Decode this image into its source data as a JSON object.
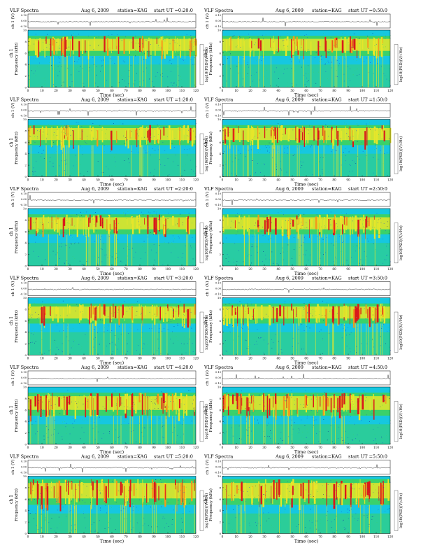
{
  "page": {
    "background": "#ffffff"
  },
  "common": {
    "title_left": "VLF Spectra",
    "date": "Aug 6, 2009",
    "station": "station=KAG",
    "start_prefix": "start  UT =",
    "amp_label": "ch 1 (V)",
    "amp_ticks": [
      "0.10",
      "0.00",
      "-0.10"
    ],
    "ylabel_line1": "ch 1",
    "ylabel_line2": "Frequency (kHz)",
    "xlabel": "Time (sec)",
    "x_ticks": [
      0,
      10,
      20,
      30,
      40,
      50,
      60,
      70,
      80,
      90,
      100,
      110,
      120
    ],
    "y_ticks": [
      0,
      2,
      4,
      6,
      8,
      10
    ],
    "colorbar_label": "log10(PSD)(V/√Hz)",
    "colormap": [
      "#0a1a8f",
      "#1e4fd8",
      "#16c7e0",
      "#3ad16a",
      "#e6e62a",
      "#f39a1c",
      "#d91a1a"
    ],
    "background_color": "#16c7e0"
  },
  "chart_data": [
    {
      "type": "heatmap",
      "start": "0:20:0",
      "xlabel": "Time (sec)",
      "ylabel": "Frequency (kHz)",
      "xlim": [
        0,
        120
      ],
      "ylim": [
        0,
        10
      ],
      "band_kHz": [
        5.5,
        9
      ],
      "cutoff_kHz": 10,
      "intensity": 0.5,
      "seed": 11
    },
    {
      "type": "heatmap",
      "start": "0:50:0",
      "xlabel": "Time (sec)",
      "ylabel": "Frequency (kHz)",
      "xlim": [
        0,
        120
      ],
      "ylim": [
        0,
        10
      ],
      "band_kHz": [
        5.5,
        9
      ],
      "cutoff_kHz": 10,
      "intensity": 0.5,
      "seed": 23
    },
    {
      "type": "heatmap",
      "start": "1:20:0",
      "xlabel": "Time (sec)",
      "ylabel": "Frequency (kHz)",
      "xlim": [
        0,
        120
      ],
      "ylim": [
        0,
        10
      ],
      "band_kHz": [
        5.5,
        9
      ],
      "cutoff_kHz": 10,
      "intensity": 0.55,
      "seed": 37
    },
    {
      "type": "heatmap",
      "start": "1:50:0",
      "xlabel": "Time (sec)",
      "ylabel": "Frequency (kHz)",
      "xlim": [
        0,
        120
      ],
      "ylim": [
        0,
        10
      ],
      "band_kHz": [
        5.5,
        9
      ],
      "cutoff_kHz": 10,
      "intensity": 0.55,
      "seed": 41
    },
    {
      "type": "heatmap",
      "start": "2:20:0",
      "xlabel": "Time (sec)",
      "ylabel": "Frequency (kHz)",
      "xlim": [
        0,
        120
      ],
      "ylim": [
        0,
        10
      ],
      "band_kHz": [
        5.5,
        9
      ],
      "cutoff_kHz": 10,
      "intensity": 0.55,
      "seed": 53
    },
    {
      "type": "heatmap",
      "start": "2:50:0",
      "xlabel": "Time (sec)",
      "ylabel": "Frequency (kHz)",
      "xlim": [
        0,
        120
      ],
      "ylim": [
        0,
        10
      ],
      "band_kHz": [
        5.5,
        9
      ],
      "cutoff_kHz": 10,
      "intensity": 0.55,
      "seed": 67
    },
    {
      "type": "heatmap",
      "start": "3:20:0",
      "xlabel": "Time (sec)",
      "ylabel": "Frequency (kHz)",
      "xlim": [
        0,
        120
      ],
      "ylim": [
        0,
        10
      ],
      "band_kHz": [
        5.5,
        9
      ],
      "cutoff_kHz": 10,
      "intensity": 0.6,
      "seed": 71
    },
    {
      "type": "heatmap",
      "start": "3:50:0",
      "xlabel": "Time (sec)",
      "ylabel": "Frequency (kHz)",
      "xlim": [
        0,
        120
      ],
      "ylim": [
        0,
        10
      ],
      "band_kHz": [
        5.5,
        9
      ],
      "cutoff_kHz": 10,
      "intensity": 0.6,
      "seed": 83
    },
    {
      "type": "heatmap",
      "start": "4:20:0",
      "xlabel": "Time (sec)",
      "ylabel": "Frequency (kHz)",
      "xlim": [
        0,
        120
      ],
      "ylim": [
        0,
        10
      ],
      "band_kHz": [
        5,
        9
      ],
      "cutoff_kHz": 10,
      "intensity": 0.75,
      "seed": 97
    },
    {
      "type": "heatmap",
      "start": "4:50:0",
      "xlabel": "Time (sec)",
      "ylabel": "Frequency (kHz)",
      "xlim": [
        0,
        120
      ],
      "ylim": [
        0,
        10
      ],
      "band_kHz": [
        5,
        9
      ],
      "cutoff_kHz": 10,
      "intensity": 0.75,
      "seed": 101
    },
    {
      "type": "heatmap",
      "start": "5:20:0",
      "xlabel": "Time (sec)",
      "ylabel": "Frequency (kHz)",
      "xlim": [
        0,
        120
      ],
      "ylim": [
        0,
        10
      ],
      "band_kHz": [
        5,
        9.5
      ],
      "cutoff_kHz": 10,
      "intensity": 0.85,
      "seed": 113
    },
    {
      "type": "heatmap",
      "start": "5:50:0",
      "xlabel": "Time (sec)",
      "ylabel": "Frequency (kHz)",
      "xlim": [
        0,
        120
      ],
      "ylim": [
        0,
        10
      ],
      "band_kHz": [
        5,
        9.5
      ],
      "cutoff_kHz": 10,
      "intensity": 0.85,
      "seed": 127
    }
  ]
}
